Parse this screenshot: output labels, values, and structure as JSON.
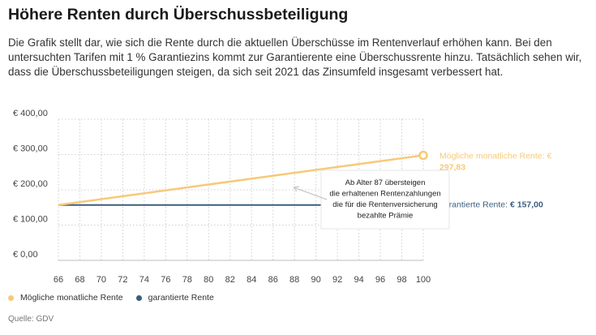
{
  "title": "Höhere Renten durch Überschussbeteiligung",
  "description": "Die Grafik stellt dar, wie sich die Rente durch die aktuellen Überschüsse im Rentenverlauf erhöhen kann. Bei den untersuchten Tarifen mit 1 % Garantiezins kommt zur Garantierente eine Überschussrente hinzu. Tatsächlich sehen wir, dass die Überschussbeteiligungen steigen, da sich seit 2021 das Zinsumfeld insgesamt verbessert hat.",
  "source": "Quelle: GDV",
  "chart_data": {
    "type": "line",
    "x_ticks": [
      "66",
      "68",
      "70",
      "72",
      "74",
      "76",
      "78",
      "80",
      "82",
      "84",
      "86",
      "88",
      "90",
      "92",
      "94",
      "96",
      "98",
      "100"
    ],
    "y_ticks": [
      "€ 0,00",
      "€ 100,00",
      "€ 200,00",
      "€ 300,00",
      "€ 400,00"
    ],
    "xlim": [
      66,
      100
    ],
    "ylim": [
      0,
      400
    ],
    "grid": true,
    "legend_position": "bottom-left",
    "series": [
      {
        "name": "Mögliche monatliche Rente",
        "color": "#f7c978",
        "x": [
          66,
          100
        ],
        "y": [
          157.0,
          297.83
        ],
        "end_label_prefix": "Mögliche monatliche Rente: ",
        "end_value": "€ 297,83"
      },
      {
        "name": "garantierte Rente",
        "color": "#3b5e7e",
        "x": [
          66,
          100
        ],
        "y": [
          157.0,
          157.0
        ],
        "end_label_prefix": "garantierte Rente: ",
        "end_value": "€ 157,00"
      }
    ],
    "annotation": {
      "lines": [
        "Ab Alter 87 übersteigen",
        "die erhaltenen Rentenzahlungen",
        "die für die Rentenversicherung",
        "bezahlte Prämie"
      ],
      "x": 87
    }
  }
}
